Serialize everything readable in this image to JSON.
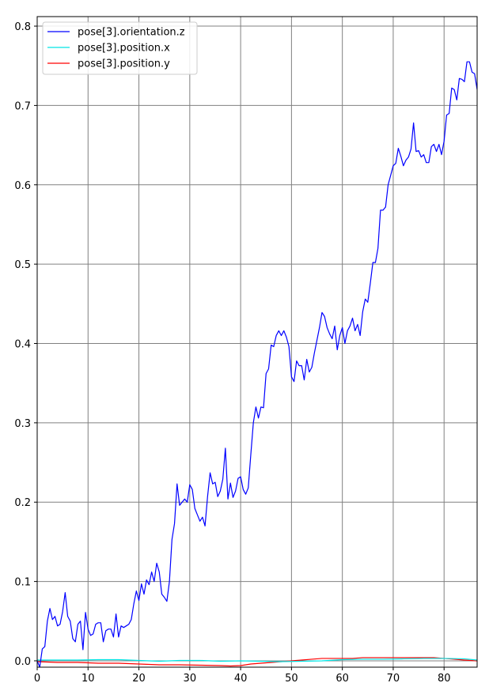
{
  "chart_data": {
    "type": "line",
    "title": "",
    "xlabel": "",
    "ylabel": "",
    "xlim": [
      0,
      86.5
    ],
    "ylim": [
      -0.008,
      0.812
    ],
    "grid": true,
    "legend_position": "top-left",
    "x_ticks": [
      0,
      10,
      20,
      30,
      40,
      50,
      60,
      70,
      80
    ],
    "y_ticks": [
      0.0,
      0.1,
      0.2,
      0.3,
      0.4,
      0.5,
      0.6,
      0.7,
      0.8
    ],
    "x_tick_labels": [
      "0",
      "10",
      "20",
      "30",
      "40",
      "50",
      "60",
      "70",
      "80"
    ],
    "y_tick_labels": [
      "0.0",
      "0.1",
      "0.2",
      "0.3",
      "0.4",
      "0.5",
      "0.6",
      "0.7",
      "0.8"
    ],
    "series": [
      {
        "name": "pose[3].orientation.z",
        "color": "#0000ff",
        "points": [
          [
            0,
            0.0
          ],
          [
            0.5,
            -0.008
          ],
          [
            1,
            0.015
          ],
          [
            1.5,
            0.018
          ],
          [
            2,
            0.05
          ],
          [
            2.5,
            0.066
          ],
          [
            3,
            0.052
          ],
          [
            3.5,
            0.056
          ],
          [
            4,
            0.044
          ],
          [
            4.5,
            0.046
          ],
          [
            5,
            0.062
          ],
          [
            5.5,
            0.086
          ],
          [
            6,
            0.056
          ],
          [
            6.5,
            0.05
          ],
          [
            7,
            0.028
          ],
          [
            7.5,
            0.024
          ],
          [
            8,
            0.046
          ],
          [
            8.5,
            0.05
          ],
          [
            9,
            0.014
          ],
          [
            9.5,
            0.061
          ],
          [
            10,
            0.04
          ],
          [
            10.5,
            0.032
          ],
          [
            11,
            0.034
          ],
          [
            11.5,
            0.046
          ],
          [
            12,
            0.048
          ],
          [
            12.5,
            0.048
          ],
          [
            13,
            0.024
          ],
          [
            13.5,
            0.038
          ],
          [
            14,
            0.04
          ],
          [
            14.5,
            0.04
          ],
          [
            15,
            0.03
          ],
          [
            15.5,
            0.059
          ],
          [
            16,
            0.03
          ],
          [
            16.5,
            0.044
          ],
          [
            17,
            0.042
          ],
          [
            17.5,
            0.044
          ],
          [
            18,
            0.046
          ],
          [
            18.5,
            0.052
          ],
          [
            19,
            0.072
          ],
          [
            19.5,
            0.088
          ],
          [
            20,
            0.076
          ],
          [
            20.5,
            0.097
          ],
          [
            21,
            0.084
          ],
          [
            21.5,
            0.102
          ],
          [
            22,
            0.096
          ],
          [
            22.5,
            0.112
          ],
          [
            23,
            0.1
          ],
          [
            23.5,
            0.123
          ],
          [
            24,
            0.112
          ],
          [
            24.5,
            0.084
          ],
          [
            25,
            0.08
          ],
          [
            25.5,
            0.075
          ],
          [
            26,
            0.1
          ],
          [
            26.5,
            0.153
          ],
          [
            27,
            0.173
          ],
          [
            27.5,
            0.223
          ],
          [
            28,
            0.196
          ],
          [
            28.5,
            0.2
          ],
          [
            29,
            0.204
          ],
          [
            29.5,
            0.2
          ],
          [
            30,
            0.222
          ],
          [
            30.5,
            0.216
          ],
          [
            31,
            0.192
          ],
          [
            31.5,
            0.184
          ],
          [
            32,
            0.176
          ],
          [
            32.5,
            0.181
          ],
          [
            33,
            0.17
          ],
          [
            33.5,
            0.207
          ],
          [
            34,
            0.237
          ],
          [
            34.5,
            0.223
          ],
          [
            35,
            0.225
          ],
          [
            35.5,
            0.207
          ],
          [
            36,
            0.214
          ],
          [
            36.5,
            0.229
          ],
          [
            37,
            0.268
          ],
          [
            37.5,
            0.204
          ],
          [
            38,
            0.224
          ],
          [
            38.5,
            0.206
          ],
          [
            39,
            0.214
          ],
          [
            39.5,
            0.23
          ],
          [
            40,
            0.232
          ],
          [
            40.5,
            0.216
          ],
          [
            41,
            0.21
          ],
          [
            41.5,
            0.218
          ],
          [
            42,
            0.26
          ],
          [
            42.5,
            0.3
          ],
          [
            43,
            0.32
          ],
          [
            43.5,
            0.306
          ],
          [
            44,
            0.32
          ],
          [
            44.5,
            0.319
          ],
          [
            45,
            0.362
          ],
          [
            45.5,
            0.368
          ],
          [
            46,
            0.398
          ],
          [
            46.5,
            0.396
          ],
          [
            47,
            0.41
          ],
          [
            47.5,
            0.416
          ],
          [
            48,
            0.41
          ],
          [
            48.5,
            0.416
          ],
          [
            49,
            0.408
          ],
          [
            49.5,
            0.396
          ],
          [
            50,
            0.358
          ],
          [
            50.5,
            0.352
          ],
          [
            51,
            0.378
          ],
          [
            51.5,
            0.372
          ],
          [
            52,
            0.372
          ],
          [
            52.5,
            0.354
          ],
          [
            53,
            0.38
          ],
          [
            53.5,
            0.364
          ],
          [
            54,
            0.37
          ],
          [
            54.5,
            0.388
          ],
          [
            55,
            0.404
          ],
          [
            55.5,
            0.42
          ],
          [
            56,
            0.439
          ],
          [
            56.5,
            0.434
          ],
          [
            57,
            0.42
          ],
          [
            57.5,
            0.412
          ],
          [
            58,
            0.406
          ],
          [
            58.5,
            0.422
          ],
          [
            59,
            0.392
          ],
          [
            59.5,
            0.41
          ],
          [
            60,
            0.42
          ],
          [
            60.5,
            0.4
          ],
          [
            61,
            0.416
          ],
          [
            61.5,
            0.422
          ],
          [
            62,
            0.432
          ],
          [
            62.5,
            0.416
          ],
          [
            63,
            0.424
          ],
          [
            63.5,
            0.41
          ],
          [
            64,
            0.44
          ],
          [
            64.5,
            0.456
          ],
          [
            65,
            0.452
          ],
          [
            65.5,
            0.476
          ],
          [
            66,
            0.502
          ],
          [
            66.5,
            0.502
          ],
          [
            67,
            0.52
          ],
          [
            67.5,
            0.568
          ],
          [
            68,
            0.568
          ],
          [
            68.5,
            0.572
          ],
          [
            69,
            0.6
          ],
          [
            69.5,
            0.612
          ],
          [
            70,
            0.624
          ],
          [
            70.5,
            0.627
          ],
          [
            71,
            0.646
          ],
          [
            71.5,
            0.636
          ],
          [
            72,
            0.624
          ],
          [
            72.5,
            0.631
          ],
          [
            73,
            0.635
          ],
          [
            73.5,
            0.645
          ],
          [
            74,
            0.678
          ],
          [
            74.5,
            0.642
          ],
          [
            75,
            0.643
          ],
          [
            75.5,
            0.635
          ],
          [
            76,
            0.638
          ],
          [
            76.5,
            0.628
          ],
          [
            77,
            0.628
          ],
          [
            77.5,
            0.648
          ],
          [
            78,
            0.651
          ],
          [
            78.5,
            0.642
          ],
          [
            79,
            0.651
          ],
          [
            79.5,
            0.638
          ],
          [
            80,
            0.655
          ],
          [
            80.5,
            0.688
          ],
          [
            81,
            0.69
          ],
          [
            81.5,
            0.722
          ],
          [
            82,
            0.72
          ],
          [
            82.5,
            0.707
          ],
          [
            83,
            0.734
          ],
          [
            83.5,
            0.733
          ],
          [
            84,
            0.73
          ],
          [
            84.5,
            0.755
          ],
          [
            85,
            0.755
          ],
          [
            85.5,
            0.742
          ],
          [
            86,
            0.74
          ],
          [
            86.5,
            0.72
          ]
        ]
      },
      {
        "name": "pose[3].position.x",
        "color": "#00e5e5",
        "points": [
          [
            0,
            0.001
          ],
          [
            4,
            0.001
          ],
          [
            8,
            0.001
          ],
          [
            12,
            0.0015
          ],
          [
            16,
            0.0015
          ],
          [
            20,
            0.0005
          ],
          [
            24,
            -0.0005
          ],
          [
            28,
            0.0005
          ],
          [
            32,
            0.0005
          ],
          [
            36,
            -0.0005
          ],
          [
            40,
            0.0
          ],
          [
            44,
            -0.0005
          ],
          [
            48,
            -0.001
          ],
          [
            52,
            -0.0005
          ],
          [
            56,
            0.0
          ],
          [
            60,
            0.0015
          ],
          [
            64,
            0.002
          ],
          [
            68,
            0.002
          ],
          [
            72,
            0.0025
          ],
          [
            76,
            0.003
          ],
          [
            80,
            0.003
          ],
          [
            84,
            0.0025
          ],
          [
            86.5,
            0.001
          ]
        ]
      },
      {
        "name": "pose[3].position.y",
        "color": "#ff0000",
        "points": [
          [
            0,
            -0.001
          ],
          [
            4,
            -0.002
          ],
          [
            8,
            -0.002
          ],
          [
            12,
            -0.003
          ],
          [
            16,
            -0.003
          ],
          [
            20,
            -0.004
          ],
          [
            24,
            -0.005
          ],
          [
            28,
            -0.005
          ],
          [
            32,
            -0.0055
          ],
          [
            36,
            -0.006
          ],
          [
            38,
            -0.0065
          ],
          [
            40,
            -0.006
          ],
          [
            42,
            -0.004
          ],
          [
            44,
            -0.003
          ],
          [
            46,
            -0.002
          ],
          [
            48,
            -0.001
          ],
          [
            50,
            0.0
          ],
          [
            52,
            0.001
          ],
          [
            54,
            0.002
          ],
          [
            56,
            0.003
          ],
          [
            58,
            0.003
          ],
          [
            60,
            0.003
          ],
          [
            62,
            0.003
          ],
          [
            64,
            0.004
          ],
          [
            66,
            0.004
          ],
          [
            68,
            0.004
          ],
          [
            70,
            0.004
          ],
          [
            72,
            0.004
          ],
          [
            74,
            0.004
          ],
          [
            76,
            0.004
          ],
          [
            78,
            0.004
          ],
          [
            80,
            0.003
          ],
          [
            82,
            0.002
          ],
          [
            84,
            0.001
          ],
          [
            86.5,
            0.0
          ]
        ]
      }
    ]
  }
}
